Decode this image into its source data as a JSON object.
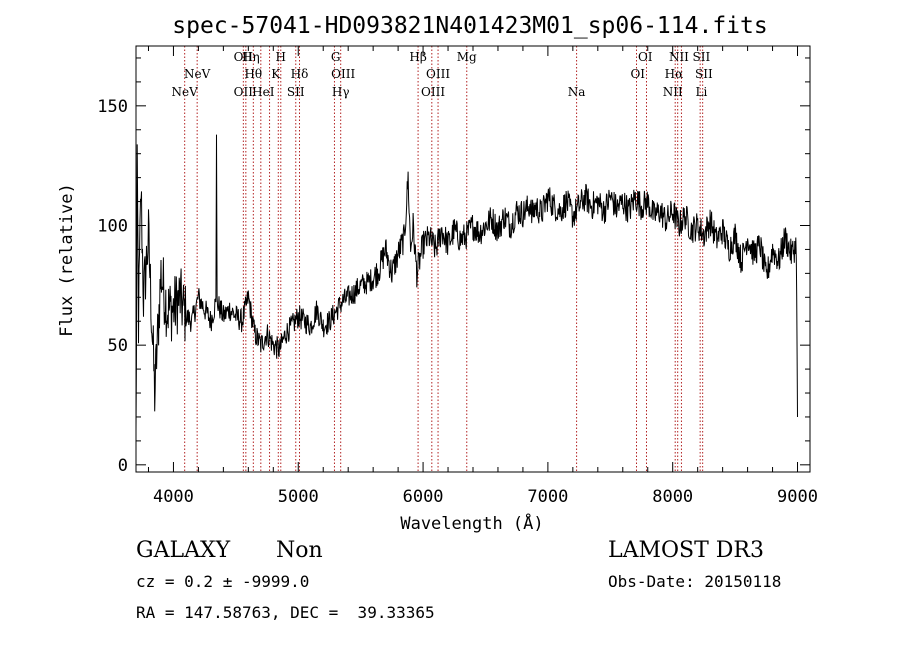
{
  "chart_data": {
    "type": "line",
    "title": "spec-57041-HD093821N401423M01_sp06-114.fits",
    "xlabel": "Wavelength (Å)",
    "ylabel": "Flux (relative)",
    "xlim": [
      3700,
      9100
    ],
    "ylim": [
      -3,
      175
    ],
    "xticks": [
      4000,
      5000,
      6000,
      7000,
      8000,
      9000
    ],
    "yticks": [
      0,
      50,
      100,
      150
    ],
    "xtick_labels": [
      "4000",
      "5000",
      "6000",
      "7000",
      "8000",
      "9000"
    ],
    "ytick_labels": [
      "0",
      "50",
      "100",
      "150"
    ],
    "spectrum_anchors": {
      "x": [
        3700,
        3710,
        3720,
        3740,
        3760,
        3800,
        3850,
        3900,
        3950,
        4000,
        4050,
        4100,
        4150,
        4200,
        4250,
        4300,
        4340,
        4345,
        4350,
        4400,
        4450,
        4500,
        4550,
        4600,
        4650,
        4700,
        4750,
        4800,
        4850,
        4900,
        4950,
        5000,
        5050,
        5100,
        5150,
        5200,
        5250,
        5300,
        5350,
        5400,
        5450,
        5500,
        5550,
        5600,
        5650,
        5700,
        5750,
        5800,
        5850,
        5880,
        5900,
        5920,
        5950,
        6000,
        6050,
        6100,
        6150,
        6200,
        6250,
        6300,
        6350,
        6400,
        6450,
        6500,
        6550,
        6600,
        6650,
        6700,
        6750,
        6800,
        6850,
        6860,
        6870,
        6900,
        6950,
        7000,
        7050,
        7100,
        7150,
        7200,
        7250,
        7300,
        7350,
        7400,
        7450,
        7500,
        7550,
        7600,
        7650,
        7700,
        7750,
        7800,
        7850,
        7900,
        7950,
        8000,
        8050,
        8100,
        8150,
        8200,
        8250,
        8300,
        8350,
        8400,
        8450,
        8500,
        8550,
        8600,
        8650,
        8700,
        8750,
        8800,
        8850,
        8900,
        8950,
        8990,
        9000
      ],
      "y": [
        10,
        120,
        60,
        115,
        70,
        95,
        30,
        80,
        65,
        65,
        70,
        62,
        60,
        70,
        65,
        60,
        68,
        138,
        68,
        62,
        65,
        62,
        60,
        70,
        55,
        50,
        55,
        50,
        48,
        55,
        58,
        62,
        60,
        58,
        65,
        58,
        60,
        64,
        68,
        70,
        72,
        75,
        76,
        78,
        82,
        90,
        80,
        88,
        95,
        120,
        90,
        100,
        80,
        92,
        95,
        90,
        98,
        92,
        98,
        94,
        96,
        100,
        97,
        100,
        103,
        98,
        104,
        100,
        106,
        105,
        108,
        110,
        104,
        108,
        105,
        112,
        108,
        106,
        110,
        104,
        108,
        112,
        108,
        110,
        106,
        112,
        107,
        110,
        106,
        112,
        108,
        110,
        104,
        106,
        102,
        106,
        100,
        104,
        98,
        100,
        96,
        102,
        94,
        98,
        90,
        96,
        85,
        95,
        88,
        92,
        78,
        90,
        85,
        95,
        88,
        92,
        20
      ]
    },
    "spectral_lines": [
      {
        "label": "NeV",
        "x": 4090,
        "row": 2
      },
      {
        "label": "NeV",
        "x": 4190,
        "row": 1
      },
      {
        "label": "OII",
        "x": 4560,
        "row": 0
      },
      {
        "label": "OII",
        "x": 4560,
        "row": 2
      },
      {
        "label": "Hη",
        "x": 4620,
        "row": 0
      },
      {
        "label": "Hθ",
        "x": 4640,
        "row": 1
      },
      {
        "label": "HeI",
        "x": 4720,
        "row": 2
      },
      {
        "label": "K",
        "x": 4820,
        "row": 1
      },
      {
        "label": "H",
        "x": 4860,
        "row": 0
      },
      {
        "label": "SII",
        "x": 4980,
        "row": 2
      },
      {
        "label": "Hδ",
        "x": 5010,
        "row": 1
      },
      {
        "label": "G",
        "x": 5300,
        "row": 0
      },
      {
        "label": "OIII",
        "x": 5360,
        "row": 1
      },
      {
        "label": "Hγ",
        "x": 5340,
        "row": 2
      },
      {
        "label": "Hβ",
        "x": 5960,
        "row": 0
      },
      {
        "label": "OIII",
        "x": 6120,
        "row": 1
      },
      {
        "label": "OIII",
        "x": 6080,
        "row": 2
      },
      {
        "label": "Mg",
        "x": 6350,
        "row": 0
      },
      {
        "label": "Na",
        "x": 7230,
        "row": 2
      },
      {
        "label": "OI",
        "x": 7780,
        "row": 0
      },
      {
        "label": "OI",
        "x": 7720,
        "row": 1
      },
      {
        "label": "NII",
        "x": 8050,
        "row": 0
      },
      {
        "label": "Hα",
        "x": 8010,
        "row": 1
      },
      {
        "label": "NII",
        "x": 8000,
        "row": 2
      },
      {
        "label": "SII",
        "x": 8230,
        "row": 0
      },
      {
        "label": "SII",
        "x": 8250,
        "row": 1
      },
      {
        "label": "Li",
        "x": 8230,
        "row": 2
      }
    ],
    "line_marker_x": [
      4090,
      4190,
      4560,
      4580,
      4640,
      4700,
      4770,
      4840,
      4860,
      4980,
      5010,
      5290,
      5340,
      5960,
      6070,
      6120,
      6350,
      7230,
      7710,
      7790,
      8020,
      8040,
      8070,
      8220,
      8240
    ]
  },
  "info": {
    "class": "GALAXY",
    "subclass": "Non",
    "survey": "LAMOST DR3",
    "cz_line": "cz = 0.2 ± -9999.0",
    "obs_date": "Obs-Date: 20150118",
    "radec": "RA = 147.58763, DEC =  39.33365"
  },
  "colors": {
    "spectrum": "#000000",
    "marker": "#b22222"
  }
}
